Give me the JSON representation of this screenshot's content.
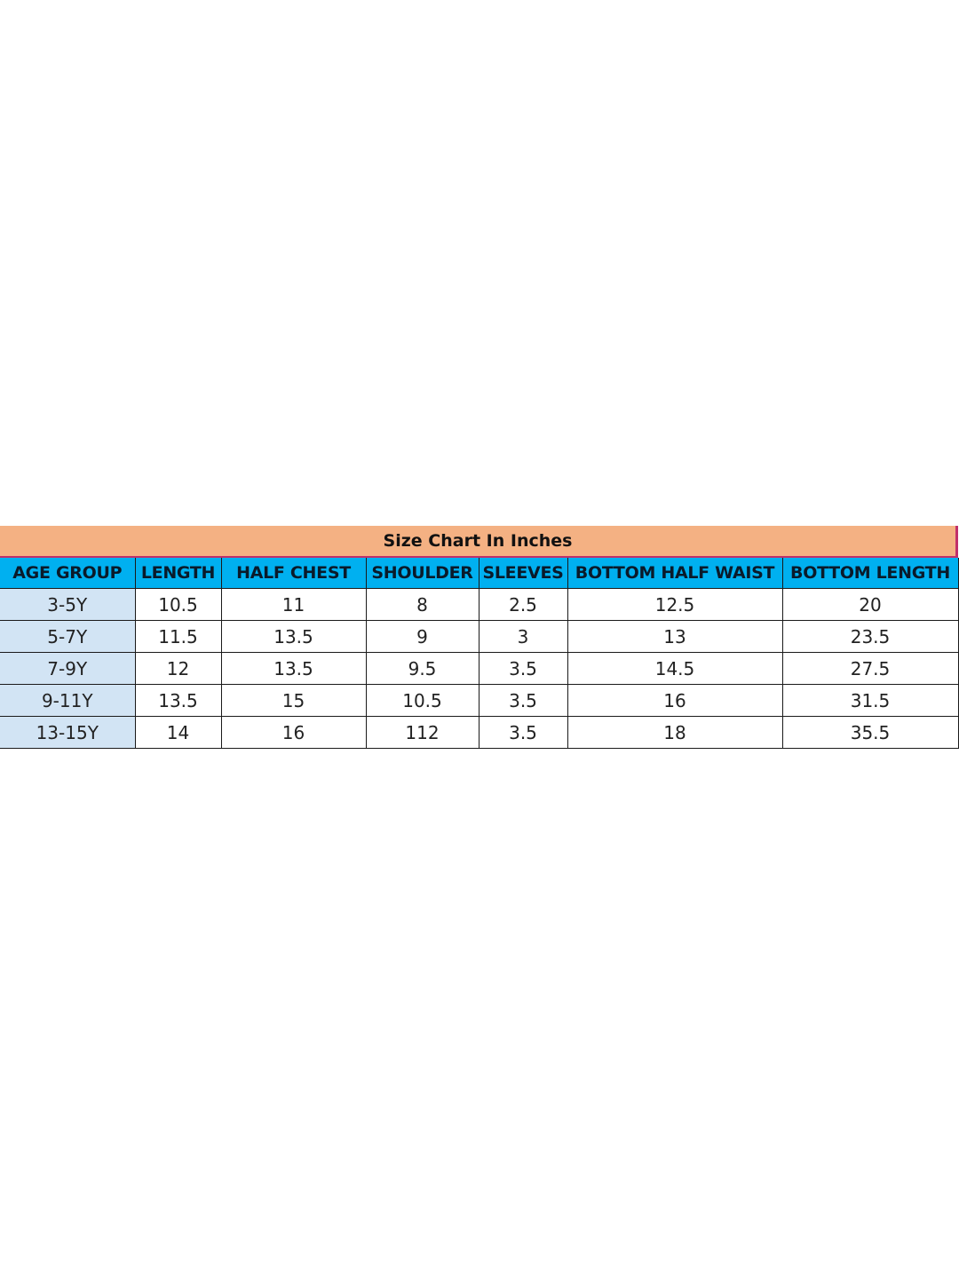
{
  "title": "Size Chart In Inches",
  "columns": [
    "AGE GROUP",
    "LENGTH",
    "HALF CHEST",
    "SHOULDER",
    "SLEEVES",
    "BOTTOM HALF WAIST",
    "BOTTOM LENGTH"
  ],
  "rows": [
    [
      "3-5Y",
      "10.5",
      "11",
      "8",
      "2.5",
      "12.5",
      "20"
    ],
    [
      "5-7Y",
      "11.5",
      "13.5",
      "9",
      "3",
      "13",
      "23.5"
    ],
    [
      "7-9Y",
      "12",
      "13.5",
      "9.5",
      "3.5",
      "14.5",
      "27.5"
    ],
    [
      "9-11Y",
      "13.5",
      "15",
      "10.5",
      "3.5",
      "16",
      "31.5"
    ],
    [
      "13-15Y",
      "14",
      "16",
      "112",
      "3.5",
      "18",
      "35.5"
    ]
  ],
  "colors": {
    "title_bg": "#F4B183",
    "header_bg": "#00B0F0",
    "age_column_bg": "#D2E4F4",
    "accent_border": "#C0306A"
  }
}
